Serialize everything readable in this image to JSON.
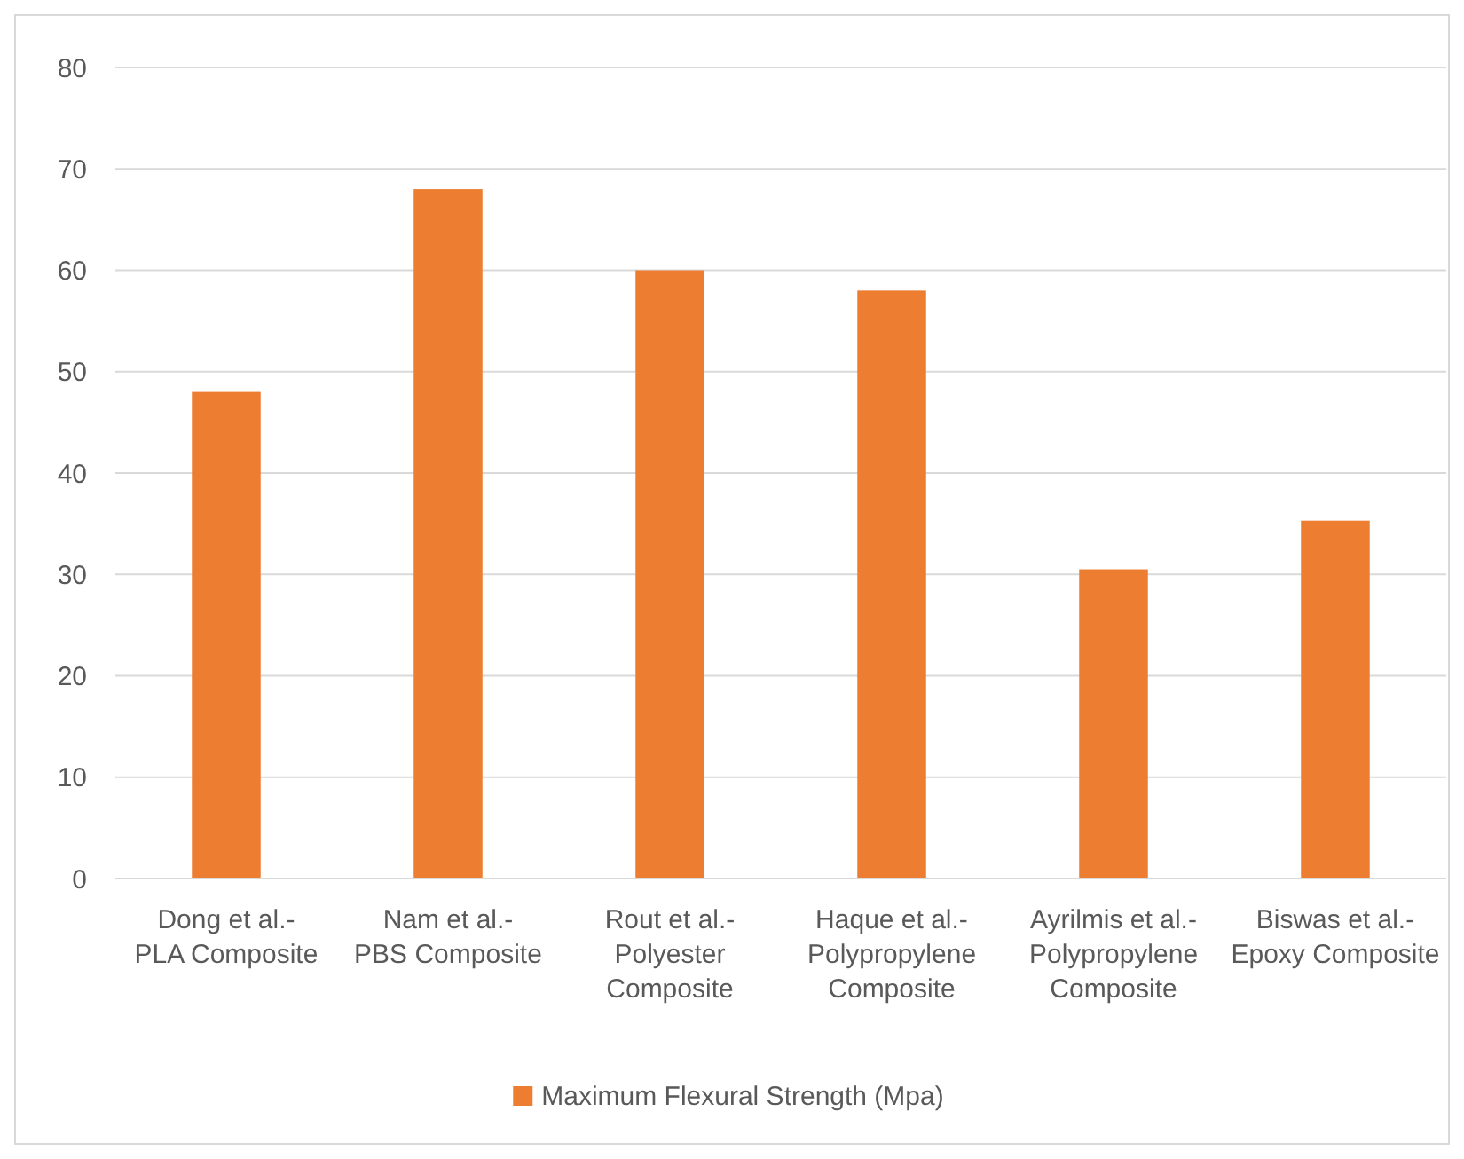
{
  "chart_data": {
    "type": "bar",
    "categories": [
      "Dong et al.- PLA Composite",
      "Nam et al.- PBS Composite",
      "Rout et al.- Polyester Composite",
      "Haque et al.- Polypropylene Composite",
      "Ayrilmis et al.- Polypropylene Composite",
      "Biswas et al.- Epoxy Composite"
    ],
    "series": [
      {
        "name": "Maximum Flexural Strength (Mpa)",
        "color": "#ed7d31",
        "values": [
          48,
          68,
          60,
          58,
          30.5,
          35.3
        ]
      }
    ],
    "ylim": [
      0,
      80
    ],
    "yticks": [
      0,
      10,
      20,
      30,
      40,
      50,
      60,
      70,
      80
    ],
    "grid": "y",
    "legend": "bottom"
  }
}
